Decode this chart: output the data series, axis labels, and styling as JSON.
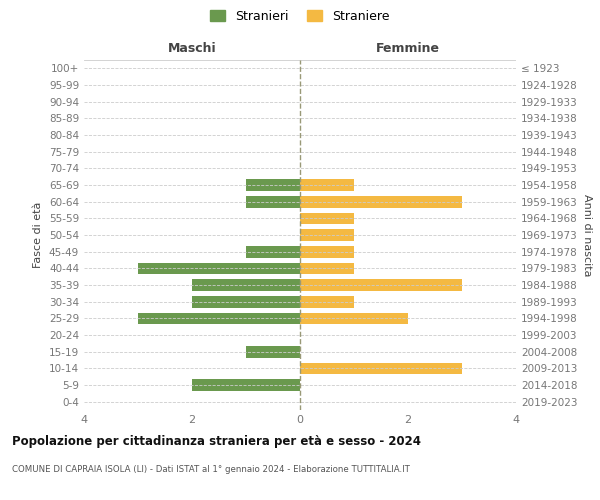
{
  "age_groups": [
    "0-4",
    "5-9",
    "10-14",
    "15-19",
    "20-24",
    "25-29",
    "30-34",
    "35-39",
    "40-44",
    "45-49",
    "50-54",
    "55-59",
    "60-64",
    "65-69",
    "70-74",
    "75-79",
    "80-84",
    "85-89",
    "90-94",
    "95-99",
    "100+"
  ],
  "birth_years": [
    "2019-2023",
    "2014-2018",
    "2009-2013",
    "2004-2008",
    "1999-2003",
    "1994-1998",
    "1989-1993",
    "1984-1988",
    "1979-1983",
    "1974-1978",
    "1969-1973",
    "1964-1968",
    "1959-1963",
    "1954-1958",
    "1949-1953",
    "1944-1948",
    "1939-1943",
    "1934-1938",
    "1929-1933",
    "1924-1928",
    "≤ 1923"
  ],
  "males": [
    0,
    2,
    0,
    1,
    0,
    3,
    2,
    2,
    3,
    1,
    0,
    0,
    1,
    1,
    0,
    0,
    0,
    0,
    0,
    0,
    0
  ],
  "females": [
    0,
    0,
    3,
    0,
    0,
    2,
    1,
    3,
    1,
    1,
    1,
    1,
    3,
    1,
    0,
    0,
    0,
    0,
    0,
    0,
    0
  ],
  "male_color": "#6a994e",
  "female_color": "#f4b942",
  "title": "Popolazione per cittadinanza straniera per età e sesso - 2024",
  "subtitle": "COMUNE DI CAPRAIA ISOLA (LI) - Dati ISTAT al 1° gennaio 2024 - Elaborazione TUTTITALIA.IT",
  "legend_male": "Stranieri",
  "legend_female": "Straniere",
  "xlabel_left": "Maschi",
  "xlabel_right": "Femmine",
  "ylabel_left": "Fasce di età",
  "ylabel_right": "Anni di nascita",
  "xlim": 4,
  "bg_color": "#ffffff",
  "grid_color": "#cccccc"
}
